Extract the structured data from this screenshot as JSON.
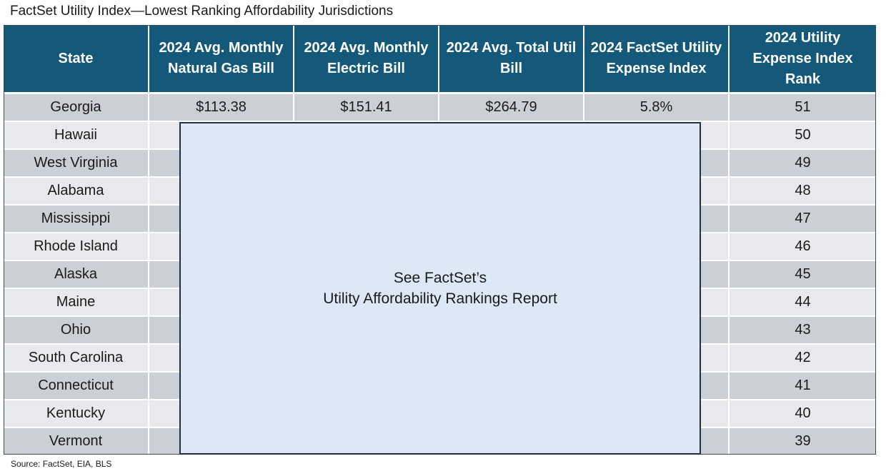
{
  "title": "FactSet Utility Index—Lowest Ranking Affordability Jurisdictions",
  "headers": [
    "State",
    "2024 Avg. Monthly Natural Gas Bill",
    "2024 Avg. Monthly Electric Bill",
    "2024 Avg. Total Util Bill",
    "2024 FactSet Utility Expense Index",
    "2024 Utility Expense Index Rank"
  ],
  "first_row": {
    "state": "Georgia",
    "gas": "$113.38",
    "electric": "$151.41",
    "total": "$264.79",
    "index": "5.8%",
    "rank": "51"
  },
  "rows": [
    {
      "state": "Hawaii",
      "rank": "50"
    },
    {
      "state": "West Virginia",
      "rank": "49"
    },
    {
      "state": "Alabama",
      "rank": "48"
    },
    {
      "state": "Mississippi",
      "rank": "47"
    },
    {
      "state": "Rhode Island",
      "rank": "46"
    },
    {
      "state": "Alaska",
      "rank": "45"
    },
    {
      "state": "Maine",
      "rank": "44"
    },
    {
      "state": "Ohio",
      "rank": "43"
    },
    {
      "state": "South Carolina",
      "rank": "42"
    },
    {
      "state": "Connecticut",
      "rank": "41"
    },
    {
      "state": "Kentucky",
      "rank": "40"
    },
    {
      "state": "Vermont",
      "rank": "39"
    }
  ],
  "overlay": {
    "line1": "See FactSet’s",
    "line2": "Utility Affordability Rankings Report"
  },
  "source": "Source: FactSet, EIA, BLS"
}
